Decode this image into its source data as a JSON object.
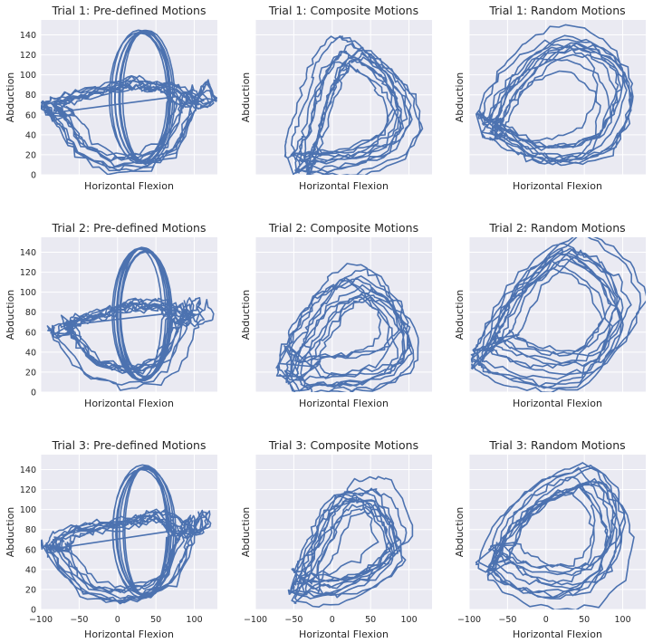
{
  "chart_data": [
    {
      "type": "line",
      "title": "Trial 1: Pre-defined Motions",
      "xlabel": "Horizontal Flexion",
      "ylabel": "Abduction",
      "xlim": [
        -100,
        130
      ],
      "ylim": [
        0,
        155
      ],
      "xticks": [],
      "yticks": [
        "0",
        "20",
        "40",
        "60",
        "80",
        "100",
        "120",
        "140"
      ],
      "pattern": "predefined",
      "seed": 11,
      "series": [
        {
          "values": [
            [
              -80,
              60
            ],
            [
              -90,
              70
            ],
            [
              -70,
              50
            ],
            [
              -50,
              25
            ],
            [
              -10,
              10
            ],
            [
              30,
              10
            ],
            [
              70,
              25
            ],
            [
              90,
              60
            ],
            [
              100,
              80
            ],
            [
              110,
              90
            ],
            [
              120,
              75
            ],
            [
              100,
              70
            ],
            [
              80,
              85
            ],
            [
              60,
              90
            ],
            [
              40,
              90
            ],
            [
              20,
              95
            ],
            [
              0,
              90
            ],
            [
              -30,
              85
            ],
            [
              -60,
              80
            ],
            [
              -80,
              75
            ],
            [
              -95,
              70
            ]
          ]
        }
      ]
    },
    {
      "type": "line",
      "title": "Trial 1: Composite Motions",
      "xlabel": "Horizontal Flexion",
      "ylabel": "Abduction",
      "xlim": [
        -100,
        130
      ],
      "ylim": [
        0,
        155
      ],
      "xticks": [],
      "yticks": [],
      "pattern": "composite",
      "seed": 21,
      "series": [
        {
          "values": [
            [
              -40,
              15
            ],
            [
              0,
              15
            ],
            [
              40,
              20
            ],
            [
              80,
              35
            ],
            [
              100,
              60
            ],
            [
              90,
              90
            ],
            [
              70,
              110
            ],
            [
              40,
              130
            ],
            [
              20,
              135
            ],
            [
              0,
              120
            ],
            [
              -10,
              100
            ],
            [
              -20,
              80
            ],
            [
              -30,
              50
            ],
            [
              -40,
              30
            ],
            [
              -40,
              15
            ]
          ]
        }
      ]
    },
    {
      "type": "line",
      "title": "Trial 1: Random Motions",
      "xlabel": "Horizontal Flexion",
      "ylabel": "Abduction",
      "xlim": [
        -100,
        130
      ],
      "ylim": [
        0,
        155
      ],
      "xticks": [],
      "yticks": [],
      "pattern": "random",
      "seed": 31,
      "series": [
        {
          "values": [
            [
              -80,
              45
            ],
            [
              -70,
              65
            ],
            [
              -50,
              90
            ],
            [
              -20,
              115
            ],
            [
              20,
              130
            ],
            [
              60,
              125
            ],
            [
              90,
              105
            ],
            [
              100,
              80
            ],
            [
              90,
              50
            ],
            [
              70,
              25
            ],
            [
              30,
              15
            ],
            [
              -10,
              15
            ],
            [
              -40,
              25
            ],
            [
              -70,
              40
            ],
            [
              -80,
              45
            ]
          ]
        }
      ]
    },
    {
      "type": "line",
      "title": "Trial 2: Pre-defined Motions",
      "xlabel": "Horizontal Flexion",
      "ylabel": "Abduction",
      "xlim": [
        -100,
        130
      ],
      "ylim": [
        0,
        155
      ],
      "xticks": [],
      "yticks": [
        "0",
        "20",
        "40",
        "60",
        "80",
        "100",
        "120",
        "140"
      ],
      "pattern": "predefined",
      "seed": 12,
      "series": [
        {
          "values": [
            [
              -85,
              60
            ],
            [
              -90,
              70
            ],
            [
              -70,
              45
            ],
            [
              -40,
              20
            ],
            [
              0,
              10
            ],
            [
              40,
              12
            ],
            [
              70,
              25
            ],
            [
              90,
              60
            ],
            [
              100,
              80
            ],
            [
              110,
              95
            ],
            [
              115,
              75
            ],
            [
              100,
              70
            ],
            [
              80,
              85
            ],
            [
              60,
              92
            ],
            [
              40,
              90
            ],
            [
              20,
              93
            ],
            [
              0,
              88
            ],
            [
              -30,
              80
            ],
            [
              -60,
              75
            ],
            [
              -80,
              70
            ]
          ]
        }
      ]
    },
    {
      "type": "line",
      "title": "Trial 2: Composite Motions",
      "xlabel": "Horizontal Flexion",
      "ylabel": "Abduction",
      "xlim": [
        -100,
        130
      ],
      "ylim": [
        0,
        155
      ],
      "xticks": [],
      "yticks": [],
      "pattern": "composite",
      "seed": 22,
      "series": [
        {
          "values": [
            [
              -55,
              30
            ],
            [
              -40,
              15
            ],
            [
              0,
              18
            ],
            [
              40,
              20
            ],
            [
              80,
              30
            ],
            [
              100,
              50
            ],
            [
              95,
              80
            ],
            [
              70,
              105
            ],
            [
              40,
              120
            ],
            [
              10,
              110
            ],
            [
              -10,
              95
            ],
            [
              -30,
              70
            ],
            [
              -50,
              50
            ],
            [
              -55,
              30
            ]
          ]
        }
      ]
    },
    {
      "type": "line",
      "title": "Trial 2: Random Motions",
      "xlabel": "Horizontal Flexion",
      "ylabel": "Abduction",
      "xlim": [
        -100,
        130
      ],
      "ylim": [
        0,
        155
      ],
      "xticks": [],
      "yticks": [],
      "pattern": "random",
      "seed": 32,
      "series": [
        {
          "values": [
            [
              -75,
              40
            ],
            [
              -60,
              65
            ],
            [
              -40,
              95
            ],
            [
              -10,
              120
            ],
            [
              30,
              145
            ],
            [
              60,
              135
            ],
            [
              90,
              115
            ],
            [
              110,
              80
            ],
            [
              90,
              45
            ],
            [
              60,
              20
            ],
            [
              20,
              15
            ],
            [
              -20,
              20
            ],
            [
              -60,
              30
            ],
            [
              -75,
              40
            ]
          ]
        }
      ]
    },
    {
      "type": "line",
      "title": "Trial 3: Pre-defined Motions",
      "xlabel": "Horizontal Flexion",
      "ylabel": "Abduction",
      "xlim": [
        -100,
        130
      ],
      "ylim": [
        0,
        155
      ],
      "xticks": [
        "−100",
        "−50",
        "0",
        "50",
        "100"
      ],
      "yticks": [
        "0",
        "20",
        "40",
        "60",
        "80",
        "100",
        "120",
        "140"
      ],
      "pattern": "predefined",
      "seed": 13,
      "series": [
        {
          "values": [
            [
              -85,
              55
            ],
            [
              -90,
              65
            ],
            [
              -70,
              40
            ],
            [
              -40,
              15
            ],
            [
              0,
              8
            ],
            [
              40,
              12
            ],
            [
              70,
              25
            ],
            [
              90,
              60
            ],
            [
              100,
              80
            ],
            [
              110,
              95
            ],
            [
              115,
              80
            ],
            [
              100,
              75
            ],
            [
              80,
              85
            ],
            [
              60,
              95
            ],
            [
              40,
              92
            ],
            [
              20,
              88
            ],
            [
              0,
              85
            ],
            [
              -30,
              82
            ],
            [
              -60,
              78
            ],
            [
              -80,
              70
            ]
          ]
        }
      ]
    },
    {
      "type": "line",
      "title": "Trial 3: Composite Motions",
      "xlabel": "Horizontal Flexion",
      "ylabel": "Abduction",
      "xlim": [
        -100,
        130
      ],
      "ylim": [
        0,
        155
      ],
      "xticks": [
        "−100",
        "−50",
        "0",
        "50",
        "100"
      ],
      "yticks": [],
      "pattern": "composite",
      "seed": 23,
      "series": [
        {
          "values": [
            [
              -50,
              20
            ],
            [
              -20,
              15
            ],
            [
              20,
              20
            ],
            [
              60,
              35
            ],
            [
              90,
              60
            ],
            [
              80,
              90
            ],
            [
              60,
              115
            ],
            [
              40,
              120
            ],
            [
              10,
              115
            ],
            [
              -10,
              95
            ],
            [
              -20,
              70
            ],
            [
              -40,
              45
            ],
            [
              -50,
              20
            ]
          ]
        }
      ]
    },
    {
      "type": "line",
      "title": "Trial 3: Random Motions",
      "xlabel": "Horizontal Flexion",
      "ylabel": "Abduction",
      "xlim": [
        -100,
        130
      ],
      "ylim": [
        0,
        155
      ],
      "xticks": [
        "−100",
        "−50",
        "0",
        "50",
        "100"
      ],
      "yticks": [],
      "pattern": "random",
      "seed": 33,
      "series": [
        {
          "values": [
            [
              -70,
              45
            ],
            [
              -50,
              80
            ],
            [
              -20,
              105
            ],
            [
              20,
              125
            ],
            [
              60,
              135
            ],
            [
              90,
              110
            ],
            [
              100,
              80
            ],
            [
              90,
              45
            ],
            [
              60,
              20
            ],
            [
              20,
              15
            ],
            [
              -20,
              20
            ],
            [
              -50,
              30
            ],
            [
              -70,
              45
            ]
          ]
        }
      ]
    }
  ],
  "colors": {
    "trace": "#4c72b0",
    "panel_bg": "#eaeaf2",
    "grid": "#ffffff"
  }
}
